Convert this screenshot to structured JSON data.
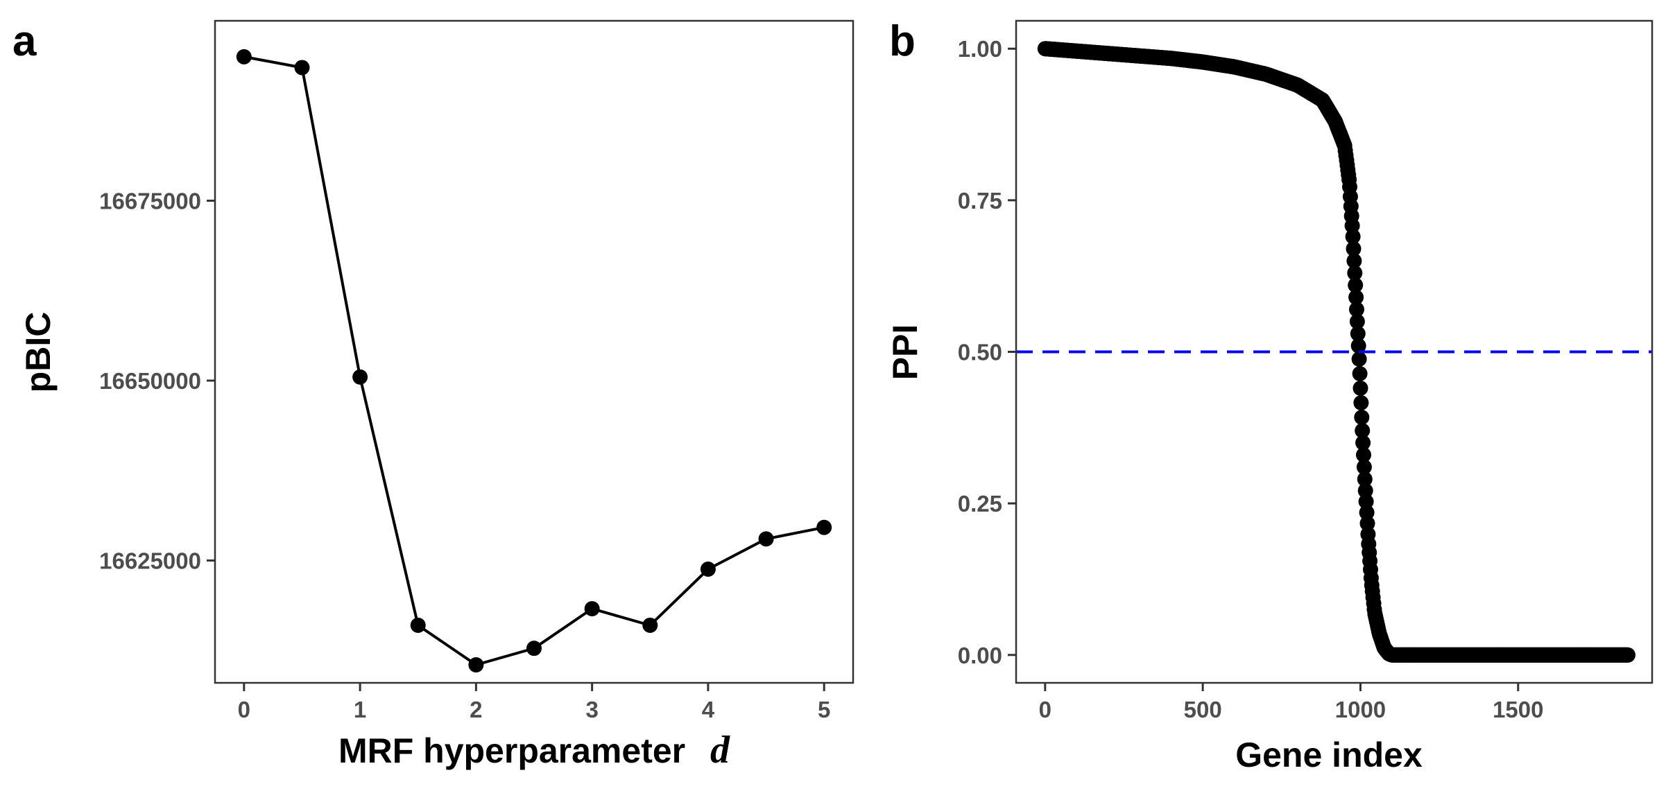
{
  "chart_data": [
    {
      "panel_label": "a",
      "type": "line",
      "xlabel": "MRF hyperparameter",
      "xlabel_variable": "d",
      "ylabel": "pBIC",
      "xlim": [
        -0.25,
        5.25
      ],
      "ylim": [
        16608000,
        16700000
      ],
      "x_ticks": [
        0,
        1,
        2,
        3,
        4,
        5
      ],
      "x_tick_labels": [
        "0",
        "1",
        "2",
        "3",
        "4",
        "5"
      ],
      "y_ticks": [
        16625000,
        16650000,
        16675000
      ],
      "y_tick_labels": [
        "16625000",
        "16650000",
        "16675000"
      ],
      "grid": false,
      "markers": true,
      "line_color": "#000000",
      "x": [
        0,
        0.5,
        1,
        1.5,
        2,
        2.5,
        3,
        3.5,
        4,
        4.5,
        5
      ],
      "y": [
        16695000,
        16693500,
        16650500,
        16616000,
        16610500,
        16612800,
        16618300,
        16616000,
        16623800,
        16628000,
        16629600
      ]
    },
    {
      "panel_label": "b",
      "type": "scatter",
      "xlabel": "Gene index",
      "ylabel": "PPI",
      "xlim": [
        -92,
        1925
      ],
      "ylim": [
        -0.046,
        1.046
      ],
      "x_ticks": [
        0,
        500,
        1000,
        1500
      ],
      "x_tick_labels": [
        "0",
        "500",
        "1000",
        "1500"
      ],
      "y_ticks": [
        0,
        0.25,
        0.5,
        0.75,
        1
      ],
      "y_tick_labels": [
        "0.00",
        "0.25",
        "0.50",
        "0.75",
        "1.00"
      ],
      "grid": false,
      "marker_color": "#000000",
      "reference_line": {
        "y": 0.5,
        "style": "dashed",
        "color": "#0000ee"
      },
      "n_points": 1850,
      "description_curve": {
        "x": [
          0,
          100,
          200,
          300,
          400,
          500,
          600,
          700,
          800,
          880,
          920,
          950,
          965,
          975,
          985,
          995,
          1005,
          1015,
          1025,
          1035,
          1045,
          1060,
          1075,
          1090,
          1100,
          1850
        ],
        "y": [
          1.0,
          0.996,
          0.992,
          0.988,
          0.984,
          0.978,
          0.97,
          0.958,
          0.94,
          0.915,
          0.88,
          0.84,
          0.78,
          0.7,
          0.6,
          0.5,
          0.38,
          0.28,
          0.19,
          0.12,
          0.07,
          0.035,
          0.012,
          0.002,
          0.0,
          0.0
        ]
      }
    }
  ]
}
